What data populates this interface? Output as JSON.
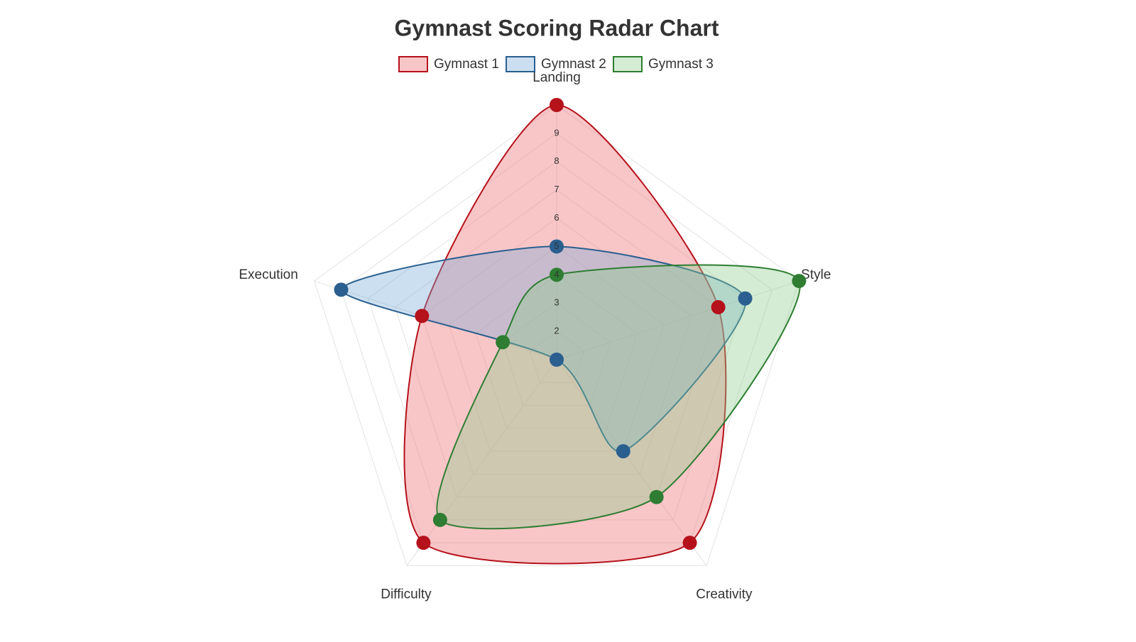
{
  "chart_data": {
    "type": "radar",
    "title": "Gymnast Scoring Radar Chart",
    "categories": [
      "Landing",
      "Style",
      "Creativity",
      "Difficulty",
      "Execution"
    ],
    "rlim": [
      1,
      10
    ],
    "rticks": [
      2,
      3,
      4,
      5,
      6,
      7,
      8,
      9
    ],
    "grid": true,
    "legend": "top",
    "series": [
      {
        "name": "Gymnast 1",
        "color": "#b5121b",
        "fill": "rgba(240,120,125,0.42)",
        "values": [
          10,
          7,
          9,
          9,
          6
        ]
      },
      {
        "name": "Gymnast 2",
        "color": "#2a5f8f",
        "fill": "rgba(120,170,215,0.38)",
        "values": [
          5,
          8,
          5,
          1,
          9
        ]
      },
      {
        "name": "Gymnast 3",
        "color": "#2e7d32",
        "fill": "rgba(140,205,140,0.38)",
        "values": [
          4,
          10,
          7,
          8,
          3
        ]
      }
    ]
  }
}
